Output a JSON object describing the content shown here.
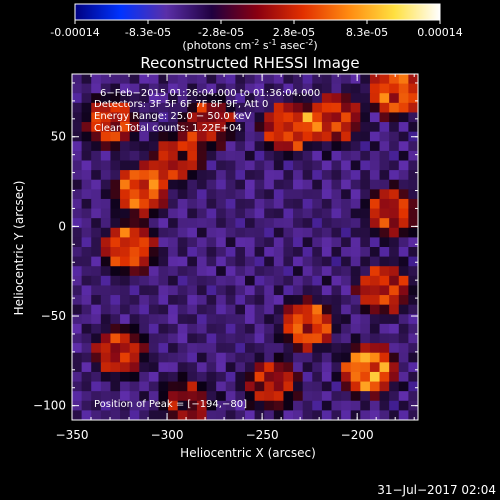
{
  "chart_data": {
    "type": "heatmap",
    "title": "Reconstructed RHESSI Image",
    "colorbar": {
      "tick_labels": [
        "-0.00014",
        "-8.3e-05",
        "-2.8e-05",
        "2.8e-05",
        "8.3e-05",
        "0.00014"
      ],
      "range": [
        -0.00014,
        0.00014
      ],
      "unit_label_pre": "(photons cm",
      "unit_exp1": "-2",
      "unit_label_mid": " s",
      "unit_exp2": "-1",
      "unit_label_post": " asec",
      "unit_exp3": "-2",
      "unit_label_end": ")",
      "colormap": [
        "#000080",
        "#0033ff",
        "#5a2fa8",
        "#200040",
        "#8a0010",
        "#e23000",
        "#ff8a10",
        "#ffe040",
        "#ffffff"
      ]
    },
    "xlabel": "Heliocentric X (arcsec)",
    "ylabel": "Heliocentric Y (arcsec)",
    "xlim": [
      -350,
      -168
    ],
    "ylim": [
      -108,
      85
    ],
    "xticks": [
      -350,
      -300,
      -250,
      -200
    ],
    "xtick_labels": [
      "−350",
      "−300",
      "−250",
      "−200"
    ],
    "yticks": [
      -100,
      -50,
      0,
      50
    ],
    "ytick_labels": [
      "−100",
      "−50",
      "0",
      "50"
    ],
    "annotations": [
      "6−Feb−2015 01:26:04.000 to 01:36:04.000",
      "Detectors: 3F 5F 6F 7F 8F 9F, Att 0",
      "Energy Range: 25.0 − 50.0 keV",
      "Clean     Total counts: 1.22E+04"
    ],
    "peak_label": "Position of Peak = [−194,−80]",
    "peak_position": [
      -194,
      -80
    ],
    "footer_timestamp": "31−Jul−2017 02:04",
    "hotspots": [
      {
        "x": -314,
        "y": 20,
        "intensity": 1.0
      },
      {
        "x": -295,
        "y": 38,
        "intensity": 0.75
      },
      {
        "x": -330,
        "y": 58,
        "intensity": 0.85
      },
      {
        "x": -320,
        "y": -12,
        "intensity": 0.95
      },
      {
        "x": -278,
        "y": 58,
        "intensity": 0.7
      },
      {
        "x": -236,
        "y": 55,
        "intensity": 0.9
      },
      {
        "x": -212,
        "y": 60,
        "intensity": 0.85
      },
      {
        "x": -180,
        "y": 75,
        "intensity": 1.0
      },
      {
        "x": -182,
        "y": 8,
        "intensity": 0.8
      },
      {
        "x": -186,
        "y": -35,
        "intensity": 0.85
      },
      {
        "x": -226,
        "y": -55,
        "intensity": 0.95
      },
      {
        "x": -194,
        "y": -80,
        "intensity": 1.15
      },
      {
        "x": -245,
        "y": -88,
        "intensity": 0.75
      },
      {
        "x": -325,
        "y": -70,
        "intensity": 0.8
      },
      {
        "x": -290,
        "y": -98,
        "intensity": 0.6
      }
    ]
  }
}
